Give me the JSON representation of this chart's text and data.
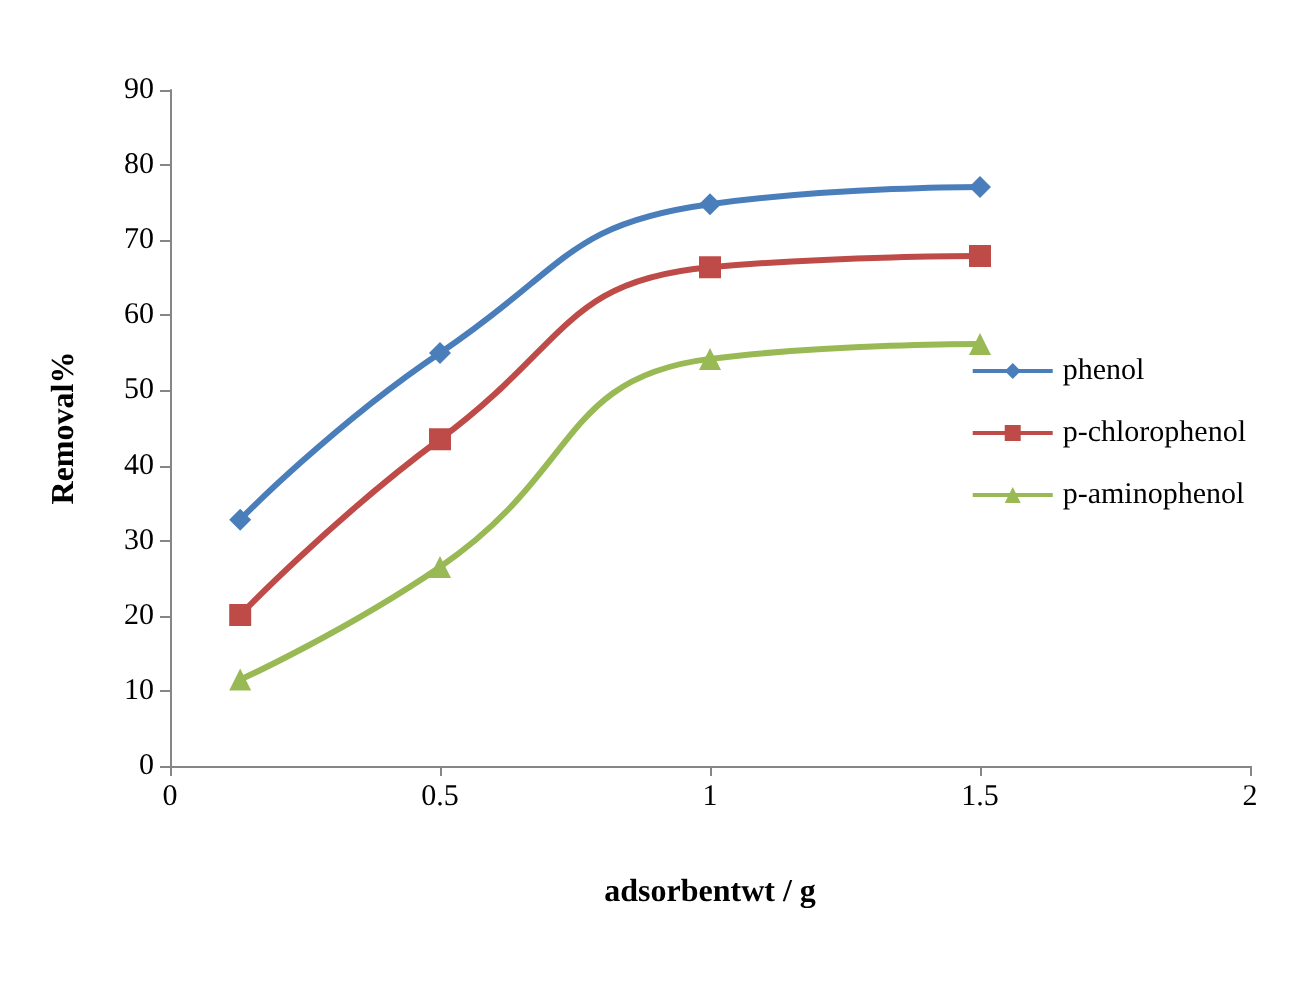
{
  "chart_data": {
    "type": "line",
    "xlabel": "adsorbentwt / g",
    "ylabel": "Removal%",
    "xlim": [
      0,
      2
    ],
    "xticks": [
      0,
      0.5,
      1,
      1.5,
      2
    ],
    "ylim": [
      0,
      90
    ],
    "yticks": [
      0,
      10,
      20,
      30,
      40,
      50,
      60,
      70,
      80,
      90
    ],
    "grid": false,
    "legend": "right",
    "x": [
      0.13,
      0.5,
      1,
      1.5
    ],
    "series": [
      {
        "name": "phenol",
        "color": "#4a7ebb",
        "marker": "diamond",
        "values": [
          32.8,
          55,
          74.8,
          77.1
        ]
      },
      {
        "name": "p-chlorophenol",
        "color": "#be4b48",
        "marker": "square",
        "values": [
          20.1,
          43.5,
          66.4,
          67.9
        ]
      },
      {
        "name": "p-aminophenol",
        "color": "#98b954",
        "marker": "triangle",
        "values": [
          11.5,
          26.5,
          54.2,
          56.2
        ]
      }
    ]
  }
}
